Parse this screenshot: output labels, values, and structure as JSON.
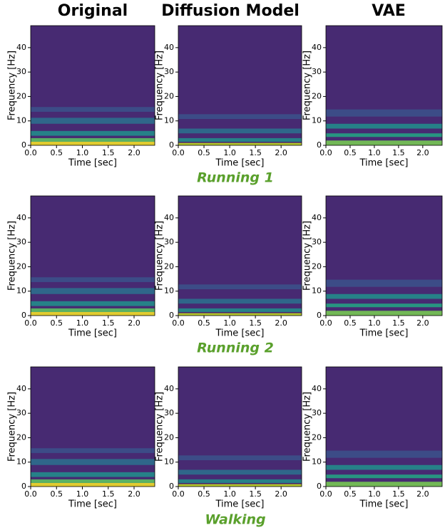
{
  "column_titles": [
    "Original",
    "Diffusion Model",
    "VAE"
  ],
  "row_titles": [
    "Running 1",
    "Running 2",
    "Walking"
  ],
  "chart_data": [
    {
      "type": "spectrogram",
      "xlabel": "Time [sec]",
      "ylabel": "Frequency [Hz]",
      "xlim": [
        0,
        2.4
      ],
      "ylim": [
        0,
        49
      ],
      "xticks": [
        {
          "value": 0,
          "label": "0.0"
        },
        0.5,
        {
          "value": 1,
          "label": "1.0"
        },
        1.5,
        {
          "value": 2,
          "label": "2.0"
        }
      ],
      "yticks": [
        0,
        10,
        20,
        30,
        40
      ]
    },
    {
      "type": "spectrogram",
      "xlabel": "Time [sec]",
      "ylabel": "Frequency [Hz]",
      "xlim": [
        0,
        2.4
      ],
      "ylim": [
        0,
        49
      ],
      "xticks": [
        {
          "value": 0,
          "label": "0.0"
        },
        0.5,
        {
          "value": 1,
          "label": "1.0"
        },
        1.5,
        {
          "value": 2,
          "label": "2.0"
        }
      ],
      "yticks": [
        0,
        10,
        20,
        30,
        40
      ]
    },
    {
      "type": "spectrogram",
      "xlabel": "Time [sec]",
      "ylabel": "Frequency [Hz]",
      "xlim": [
        0,
        2.4
      ],
      "ylim": [
        0,
        49
      ],
      "xticks": [
        {
          "value": 0,
          "label": "0.0"
        },
        0.5,
        {
          "value": 1,
          "label": "1.0"
        },
        1.5,
        {
          "value": 2,
          "label": "2.0"
        }
      ],
      "yticks": [
        0,
        10,
        20,
        30,
        40
      ]
    },
    {
      "type": "spectrogram",
      "xlabel": "Time [sec]",
      "ylabel": "Frequency [Hz]",
      "xlim": [
        0,
        2.4
      ],
      "ylim": [
        0,
        49
      ],
      "xticks": [
        {
          "value": 0,
          "label": "0.0"
        },
        0.5,
        {
          "value": 1,
          "label": "1.0"
        },
        1.5,
        {
          "value": 2,
          "label": "2.0"
        }
      ],
      "yticks": [
        0,
        10,
        20,
        30,
        40
      ]
    },
    {
      "type": "spectrogram",
      "xlabel": "Time [sec]",
      "ylabel": "Frequency [Hz]",
      "xlim": [
        0,
        2.4
      ],
      "ylim": [
        0,
        49
      ],
      "xticks": [
        {
          "value": 0,
          "label": "0.0"
        },
        0.5,
        {
          "value": 1,
          "label": "1.0"
        },
        1.5,
        {
          "value": 2,
          "label": "2.0"
        }
      ],
      "yticks": [
        0,
        10,
        20,
        30,
        40
      ]
    },
    {
      "type": "spectrogram",
      "xlabel": "Time [sec]",
      "ylabel": "Frequency [Hz]",
      "xlim": [
        0,
        2.4
      ],
      "ylim": [
        0,
        49
      ],
      "xticks": [
        {
          "value": 0,
          "label": "0.0"
        },
        0.5,
        {
          "value": 1,
          "label": "1.0"
        },
        1.5,
        {
          "value": 2,
          "label": "2.0"
        }
      ],
      "yticks": [
        0,
        10,
        20,
        30,
        40
      ]
    },
    {
      "type": "spectrogram",
      "xlabel": "Time [sec]",
      "ylabel": "Frequency [Hz]",
      "xlim": [
        0,
        2.4
      ],
      "ylim": [
        0,
        49
      ],
      "xticks": [
        {
          "value": 0,
          "label": "0.0"
        },
        0.5,
        {
          "value": 1,
          "label": "1.0"
        },
        1.5,
        {
          "value": 2,
          "label": "2.0"
        }
      ],
      "yticks": [
        0,
        10,
        20,
        30,
        40
      ]
    },
    {
      "type": "spectrogram",
      "xlabel": "Time [sec]",
      "ylabel": "Frequency [Hz]",
      "xlim": [
        0,
        2.4
      ],
      "ylim": [
        0,
        49
      ],
      "xticks": [
        {
          "value": 0,
          "label": "0.0"
        },
        0.5,
        {
          "value": 1,
          "label": "1.0"
        },
        1.5,
        {
          "value": 2,
          "label": "2.0"
        }
      ],
      "yticks": [
        0,
        10,
        20,
        30,
        40
      ]
    },
    {
      "type": "spectrogram",
      "xlabel": "Time [sec]",
      "ylabel": "Frequency [Hz]",
      "xlim": [
        0,
        2.4
      ],
      "ylim": [
        0,
        49
      ],
      "xticks": [
        {
          "value": 0,
          "label": "0.0"
        },
        0.5,
        {
          "value": 1,
          "label": "1.0"
        },
        1.5,
        {
          "value": 2,
          "label": "2.0"
        }
      ],
      "yticks": [
        0,
        10,
        20,
        30,
        40
      ]
    }
  ]
}
